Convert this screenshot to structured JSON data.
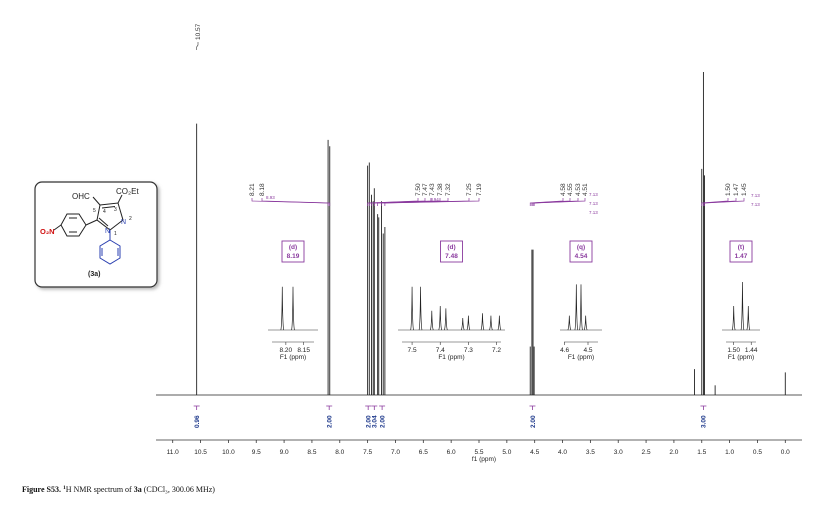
{
  "chart_data": {
    "type": "nmr",
    "x_label": "f1 (ppm)",
    "xlim": [
      11.3,
      -0.3
    ],
    "ylim": [
      0,
      100
    ],
    "xticks": [
      {
        "value": 11,
        "label": "11.0"
      },
      {
        "value": 10.5,
        "label": "10.5"
      },
      {
        "value": 10,
        "label": "10.0"
      },
      {
        "value": 9.5,
        "label": "9.5"
      },
      {
        "value": 9,
        "label": "9.0"
      },
      {
        "value": 8.5,
        "label": "8.5"
      },
      {
        "value": 8,
        "label": "8.0"
      },
      {
        "value": 7.5,
        "label": "7.5"
      },
      {
        "value": 7,
        "label": "7.0"
      },
      {
        "value": 6.5,
        "label": "6.5"
      },
      {
        "value": 6,
        "label": "6.0"
      },
      {
        "value": 5.5,
        "label": "5.5"
      },
      {
        "value": 5,
        "label": "5.0"
      },
      {
        "value": 4.5,
        "label": "4.5"
      },
      {
        "value": 4,
        "label": "4.0"
      },
      {
        "value": 3.5,
        "label": "3.5"
      },
      {
        "value": 3,
        "label": "3.0"
      },
      {
        "value": 2.5,
        "label": "2.5"
      },
      {
        "value": 2,
        "label": "2.0"
      },
      {
        "value": 1.5,
        "label": "1.5"
      },
      {
        "value": 1,
        "label": "1.0"
      },
      {
        "value": 0.5,
        "label": "0.5"
      },
      {
        "value": 0,
        "label": "0.0"
      }
    ],
    "peaks": {
      "x": [
        10.57,
        8.21,
        8.18,
        7.5,
        7.47,
        7.43,
        7.4,
        7.38,
        7.32,
        7.3,
        7.25,
        7.22,
        7.19,
        4.58,
        4.55,
        4.53,
        4.51,
        1.63,
        1.5,
        1.47,
        1.45,
        1.26,
        0.0
      ],
      "values": [
        84,
        79,
        77,
        71,
        72,
        62,
        60,
        64,
        56,
        55,
        60,
        50,
        52,
        15,
        45,
        45,
        15,
        8,
        70,
        100,
        68,
        3,
        7
      ]
    },
    "peak_labels": {
      "values": [
        10.57,
        8.21,
        8.18,
        7.5,
        7.47,
        7.43,
        7.38,
        7.32,
        7.25,
        7.19,
        4.58,
        4.55,
        4.53,
        4.51,
        1.5,
        1.47,
        1.45
      ],
      "value_labels": [
        "10.57",
        "8.21",
        "8.18",
        "7.50",
        "7.47",
        "7.43",
        "7.38",
        "7.32",
        "7.25",
        "7.19",
        "4.58",
        "4.55",
        "4.53",
        "4.51",
        "1.50",
        "1.47",
        "1.45"
      ]
    },
    "couplings": [
      "8.93",
      "8.94",
      "7.13",
      "7.13",
      "7.13",
      "7.13",
      "7.13"
    ],
    "integrals": {
      "x": [
        10.57,
        8.19,
        7.49,
        7.38,
        7.24,
        4.54,
        1.47
      ],
      "values": [
        0.96,
        2,
        2,
        3.04,
        2,
        2,
        3
      ],
      "value_labels": [
        "0.96",
        "2.00",
        "2.00",
        "3.04",
        "2.00",
        "2.00",
        "3.00"
      ]
    },
    "multiplets": [
      {
        "multiplicity": "(d)",
        "shift": "8.19"
      },
      {
        "multiplicity": "(d)",
        "shift": "7.48"
      },
      {
        "multiplicity": "(q)",
        "shift": "4.54"
      },
      {
        "multiplicity": "(t)",
        "shift": "1.47"
      }
    ],
    "insets": [
      {
        "x_label": "F1 (ppm)",
        "xlim": [
          8.25,
          8.11
        ],
        "xticks": [
          {
            "value": 8.2,
            "label": "8.20"
          },
          {
            "value": 8.15,
            "label": "8.15"
          }
        ],
        "peaks": {
          "x": [
            8.21,
            8.18
          ],
          "values": [
            90,
            90
          ]
        }
      },
      {
        "x_label": "F1 (ppm)",
        "xlim": [
          7.55,
          7.17
        ],
        "xticks": [
          7.5,
          7.4,
          7.3,
          7.2
        ],
        "peaks": {
          "x": [
            7.5,
            7.47,
            7.43,
            7.4,
            7.38,
            7.32,
            7.3,
            7.25,
            7.22,
            7.19
          ],
          "values": [
            90,
            90,
            40,
            50,
            45,
            25,
            30,
            35,
            30,
            30
          ]
        }
      },
      {
        "x_label": "F1 (ppm)",
        "xlim": [
          4.62,
          4.44
        ],
        "xticks": [
          4.6,
          4.5
        ],
        "peaks": {
          "x": [
            4.58,
            4.55,
            4.53,
            4.51
          ],
          "values": [
            30,
            95,
            95,
            30
          ]
        }
      },
      {
        "x_label": "F1 (ppm)",
        "xlim": [
          1.54,
          1.41
        ],
        "xticks": [
          {
            "value": 1.5,
            "label": "1.50"
          },
          1.44
        ],
        "peaks": {
          "x": [
            1.5,
            1.47,
            1.45
          ],
          "values": [
            50,
            100,
            50
          ]
        }
      }
    ]
  },
  "structure": {
    "substituents": [
      "OHC",
      "CO₂Et",
      "O₂N"
    ],
    "atoms": [
      "N",
      "N"
    ],
    "locants": [
      "4",
      "3",
      "5",
      "1",
      "2"
    ],
    "compound": "(3a)"
  },
  "caption": {
    "label": "Figure S53.",
    "nucleus": "1",
    "text": "H NMR spectrum of ",
    "compound": "3a",
    "conditions": " (CDCl₃, 300.06 MHz)"
  }
}
